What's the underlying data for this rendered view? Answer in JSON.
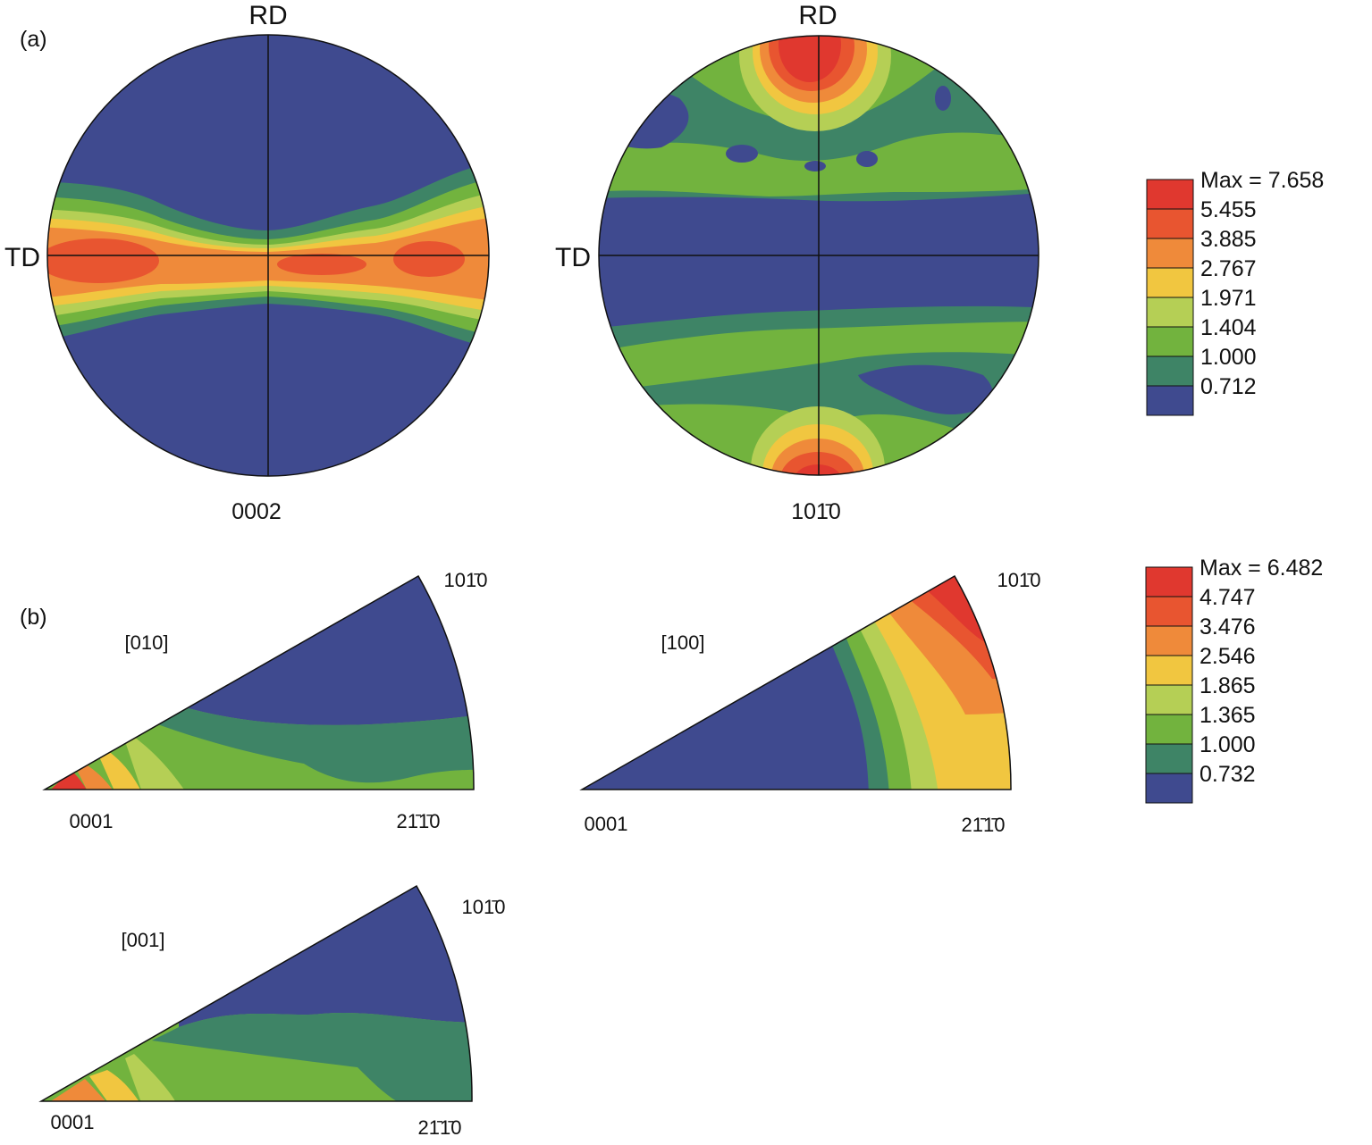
{
  "panel_a": {
    "tag": "(a)",
    "axis_top": "RD",
    "axis_left": "TD",
    "pole_figures": [
      {
        "caption": "0002"
      },
      {
        "caption": "101̄0"
      }
    ],
    "legend": {
      "max_label": "Max = 7.658",
      "levels": [
        "5.455",
        "3.885",
        "2.767",
        "1.971",
        "1.404",
        "1.000",
        "0.712"
      ],
      "colors": [
        "#e0382f",
        "#e85530",
        "#ef8a3a",
        "#f1c640",
        "#b5cf55",
        "#72b33e",
        "#3e8466",
        "#3f4a8f"
      ]
    }
  },
  "panel_b": {
    "tag": "(b)",
    "ipfs": [
      {
        "direction": "[010]",
        "corner_origin": "0001",
        "corner_top": "101̄0",
        "corner_right": "21̄1̄0"
      },
      {
        "direction": "[100]",
        "corner_origin": "0001",
        "corner_top": "101̄0",
        "corner_right": "21̄1̄0"
      },
      {
        "direction": "[001]",
        "corner_origin": "0001",
        "corner_top": "101̄0",
        "corner_right": "21̄1̄0"
      }
    ],
    "legend": {
      "max_label": "Max = 6.482",
      "levels": [
        "4.747",
        "3.476",
        "2.546",
        "1.865",
        "1.365",
        "1.000",
        "0.732"
      ],
      "colors": [
        "#e0382f",
        "#e85530",
        "#ef8a3a",
        "#f1c640",
        "#b5cf55",
        "#72b33e",
        "#3e8466",
        "#3f4a8f"
      ]
    }
  },
  "colors": {
    "blue": "#3f4a8f",
    "teal": "#3e8466",
    "green": "#72b33e",
    "lightgreen": "#b5cf55",
    "yellow": "#f1c640",
    "orange": "#ef8a3a",
    "orangered": "#e85530",
    "red": "#e0382f"
  }
}
